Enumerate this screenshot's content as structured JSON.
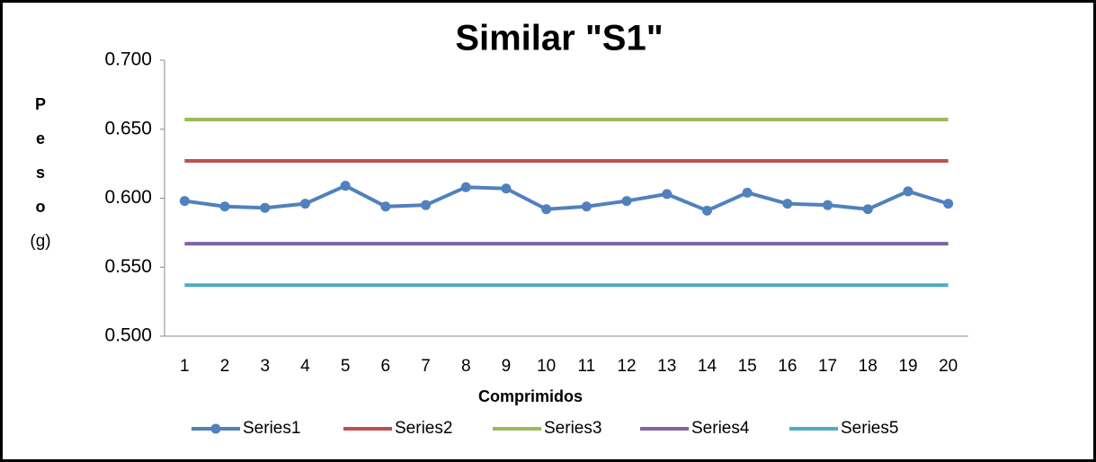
{
  "chart_data": {
    "type": "line",
    "title": "Similar \"S1\"",
    "xlabel": "Comprimidos",
    "ylabel_lines": [
      "P",
      "e",
      "s",
      "o",
      "(g)"
    ],
    "categories": [
      "1",
      "2",
      "3",
      "4",
      "5",
      "6",
      "7",
      "8",
      "9",
      "10",
      "11",
      "12",
      "13",
      "14",
      "15",
      "16",
      "17",
      "18",
      "19",
      "20"
    ],
    "series": [
      {
        "name": "Series1",
        "color": "#4f81bd",
        "marker": true,
        "values": [
          0.598,
          0.594,
          0.593,
          0.596,
          0.609,
          0.594,
          0.595,
          0.608,
          0.607,
          0.592,
          0.594,
          0.598,
          0.603,
          0.591,
          0.604,
          0.596,
          0.595,
          0.592,
          0.605,
          0.596
        ]
      },
      {
        "name": "Series2",
        "color": "#c0504d",
        "marker": false,
        "values": [
          0.627,
          0.627,
          0.627,
          0.627,
          0.627,
          0.627,
          0.627,
          0.627,
          0.627,
          0.627,
          0.627,
          0.627,
          0.627,
          0.627,
          0.627,
          0.627,
          0.627,
          0.627,
          0.627,
          0.627
        ]
      },
      {
        "name": "Series3",
        "color": "#9bbb59",
        "marker": false,
        "values": [
          0.657,
          0.657,
          0.657,
          0.657,
          0.657,
          0.657,
          0.657,
          0.657,
          0.657,
          0.657,
          0.657,
          0.657,
          0.657,
          0.657,
          0.657,
          0.657,
          0.657,
          0.657,
          0.657,
          0.657
        ]
      },
      {
        "name": "Series4",
        "color": "#8064a2",
        "marker": false,
        "values": [
          0.567,
          0.567,
          0.567,
          0.567,
          0.567,
          0.567,
          0.567,
          0.567,
          0.567,
          0.567,
          0.567,
          0.567,
          0.567,
          0.567,
          0.567,
          0.567,
          0.567,
          0.567,
          0.567,
          0.567
        ]
      },
      {
        "name": "Series5",
        "color": "#4bacc6",
        "marker": false,
        "values": [
          0.537,
          0.537,
          0.537,
          0.537,
          0.537,
          0.537,
          0.537,
          0.537,
          0.537,
          0.537,
          0.537,
          0.537,
          0.537,
          0.537,
          0.537,
          0.537,
          0.537,
          0.537,
          0.537,
          0.537
        ]
      }
    ],
    "ylim": [
      0.5,
      0.7
    ],
    "yticks": [
      {
        "value": 0.5,
        "label": "0.500"
      },
      {
        "value": 0.55,
        "label": "0.550"
      },
      {
        "value": 0.6,
        "label": "0.600"
      },
      {
        "value": 0.65,
        "label": "0.650"
      },
      {
        "value": 0.7,
        "label": "0.700"
      }
    ],
    "grid": false,
    "legend": "bottom"
  }
}
